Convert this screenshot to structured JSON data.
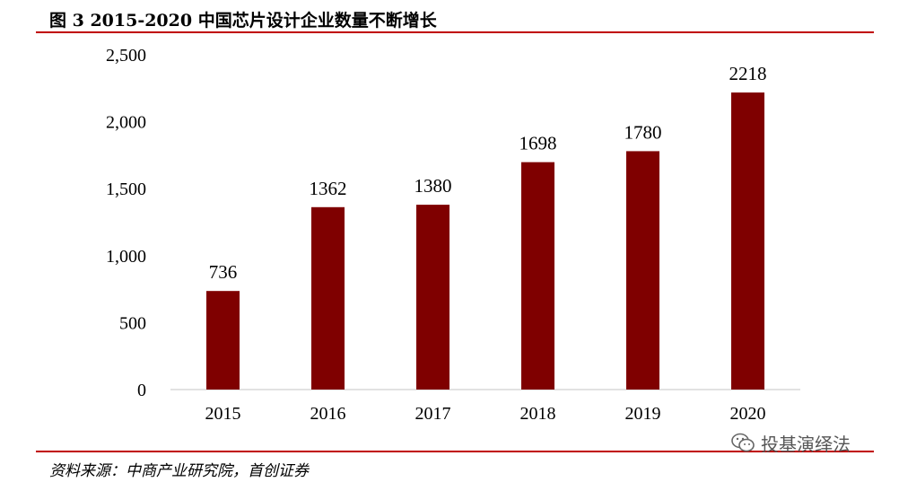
{
  "figure": {
    "title": "图  3 2015-2020 中国芯片设计企业数量不断增长",
    "source": "资料来源：中商产业研究院，首创证券",
    "watermark": "投基演绎法",
    "watermark_icon": "wechat-icon"
  },
  "colors": {
    "bar": "#7f0000",
    "rule": "#c00000",
    "axis": "#d9d9d9"
  },
  "chart_data": {
    "type": "bar",
    "categories": [
      "2015",
      "2016",
      "2017",
      "2018",
      "2019",
      "2020"
    ],
    "values": [
      736,
      1362,
      1380,
      1698,
      1780,
      2218
    ],
    "data_labels": [
      "736",
      "1362",
      "1380",
      "1698",
      "1780",
      "2218"
    ],
    "y_ticks": [
      0,
      500,
      1000,
      1500,
      2000,
      2500
    ],
    "y_tick_labels": [
      "0",
      "500",
      "1,000",
      "1,500",
      "2,000",
      "2,500"
    ],
    "ylim": [
      0,
      2500
    ],
    "grid": false,
    "legend": "none"
  }
}
